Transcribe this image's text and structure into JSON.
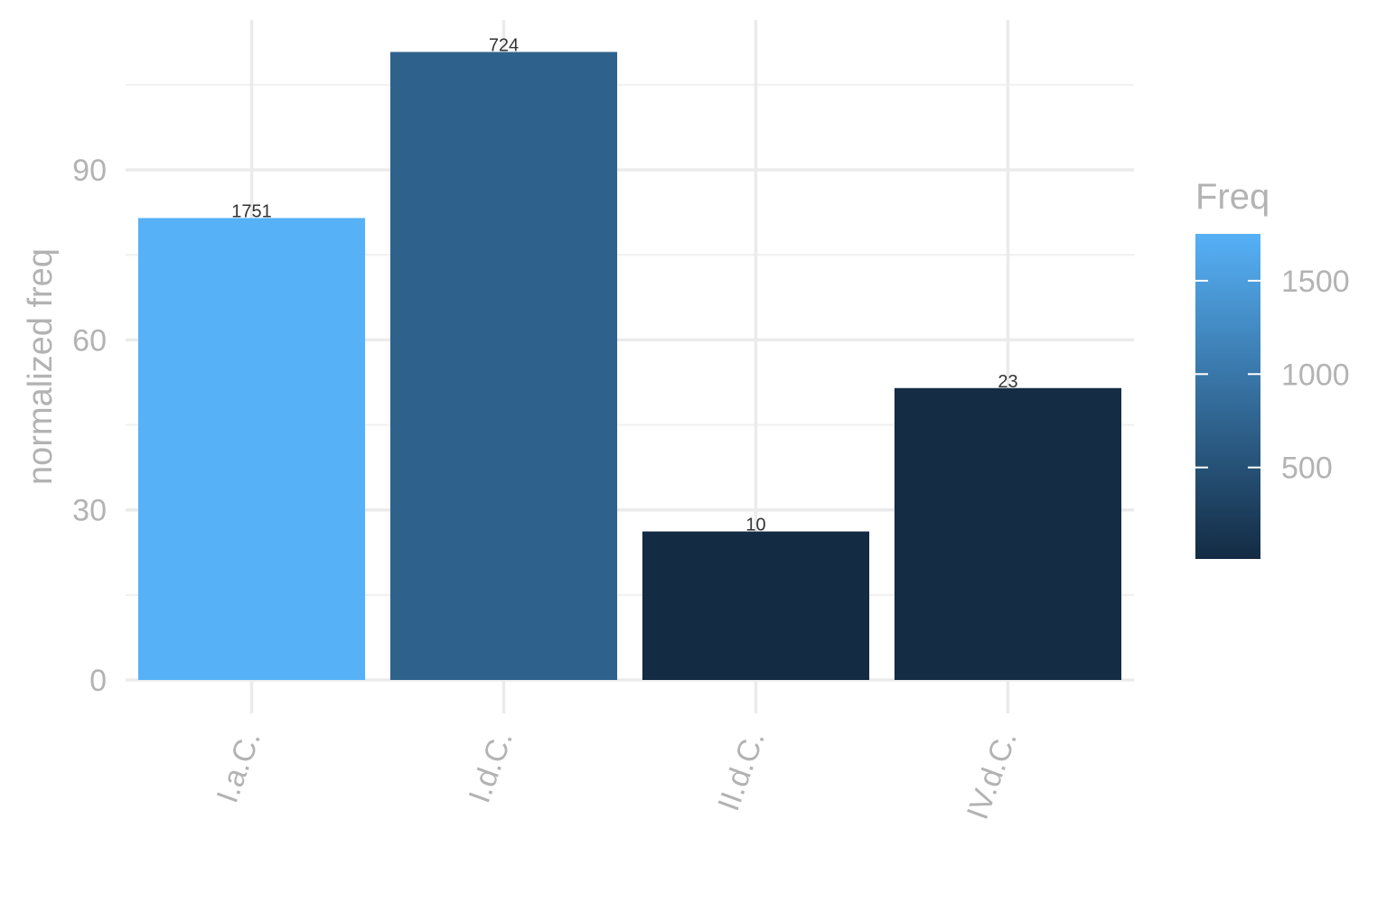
{
  "chart_data": {
    "type": "bar",
    "categories": [
      "I.a.C.",
      "I.d.C.",
      "II.d.C.",
      "IV.d.C."
    ],
    "values": [
      81.5,
      110.8,
      26.2,
      51.5
    ],
    "bar_labels": [
      "1751",
      "724",
      "10",
      "23"
    ],
    "fill_values": [
      1751,
      724,
      10,
      23
    ],
    "xlabel": "",
    "ylabel": "normalized freq",
    "ylim": [
      0,
      117
    ],
    "yticks": [
      0,
      30,
      60,
      90
    ],
    "grid": true,
    "legend": {
      "title": "Freq",
      "position": "right",
      "type": "colorbar",
      "range": [
        10,
        1751
      ],
      "ticks": [
        500,
        1000,
        1500
      ],
      "tick_labels": [
        "500",
        "1000",
        "1500"
      ],
      "color_low": "#132b43",
      "color_high": "#56b1f7"
    }
  }
}
